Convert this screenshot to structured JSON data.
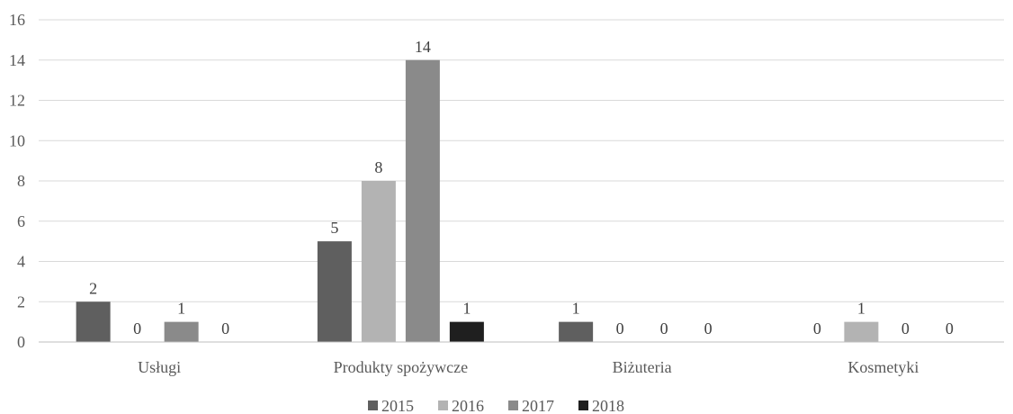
{
  "chart_data": {
    "type": "bar",
    "categories": [
      "Usługi",
      "Produkty spożywcze",
      "Biżuteria",
      "Kosmetyki"
    ],
    "series": [
      {
        "name": "2015",
        "values": [
          2,
          5,
          1,
          0
        ],
        "color": "#5f5f5f"
      },
      {
        "name": "2016",
        "values": [
          0,
          8,
          0,
          1
        ],
        "color": "#b3b3b3"
      },
      {
        "name": "2017",
        "values": [
          1,
          14,
          0,
          0
        ],
        "color": "#8a8a8a"
      },
      {
        "name": "2018",
        "values": [
          0,
          1,
          0,
          0
        ],
        "color": "#1f1f1f"
      }
    ],
    "ylim": [
      0,
      16
    ],
    "yticks": [
      "0",
      "2",
      "4",
      "6",
      "8",
      "10",
      "12",
      "14",
      "16"
    ],
    "grid": true,
    "legend": "bottom",
    "data_labels": true
  }
}
